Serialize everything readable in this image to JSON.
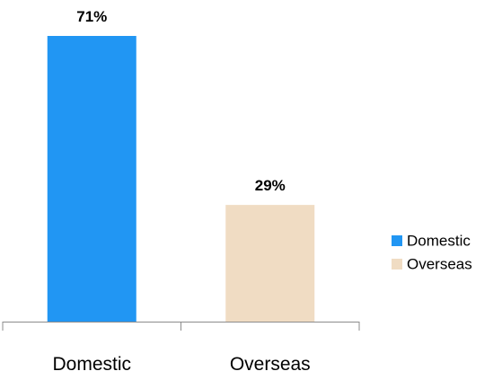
{
  "chart_data": {
    "type": "bar",
    "categories": [
      "Domestic",
      "Overseas"
    ],
    "values": [
      71,
      29
    ],
    "value_suffix": "%",
    "data_labels": [
      "71%",
      "29%"
    ],
    "colors": [
      "#2196f3",
      "#f0dcc3"
    ],
    "ylim": [
      0,
      75
    ],
    "grid": false,
    "legend": {
      "position": "right",
      "entries": [
        "Domestic",
        "Overseas"
      ]
    },
    "title": "",
    "xlabel": "",
    "ylabel": ""
  }
}
